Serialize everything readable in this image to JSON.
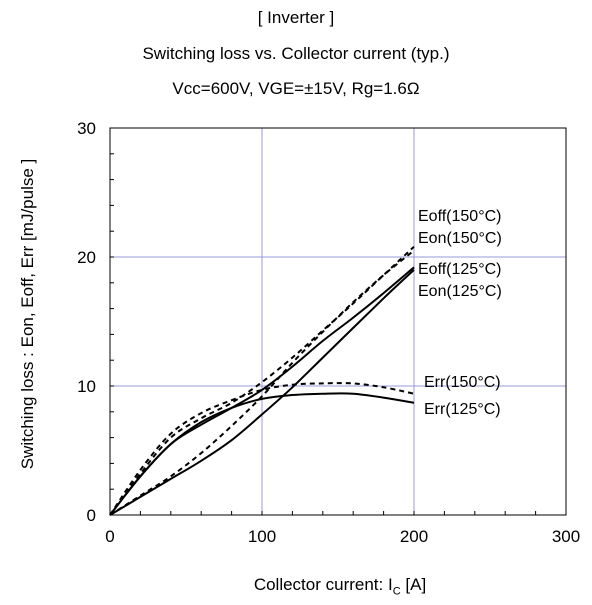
{
  "chart_data": {
    "type": "line",
    "title": "[ Inverter ]",
    "subtitle": "Switching loss  vs.  Collector current  (typ.)",
    "conditions": "Vcc=600V,   VGE=±15V,   Rg=1.6Ω",
    "xlabel_main": "Collector current: I",
    "xlabel_sub": "C",
    "xlabel_unit": " [A]",
    "ylabel": "Switching loss  : Eon, Eoff, Err  [mJ/pulse ]",
    "xlim": [
      0,
      300
    ],
    "ylim": [
      0,
      30
    ],
    "xticks": [
      0,
      100,
      200,
      300
    ],
    "yticks": [
      0,
      10,
      20,
      30
    ],
    "grid": true,
    "series": [
      {
        "name": "Eoff(150°C)",
        "style": "dashed",
        "x": [
          0,
          20,
          40,
          60,
          80,
          100,
          120,
          140,
          160,
          180,
          200
        ],
        "y": [
          0,
          3.2,
          6.0,
          7.5,
          8.7,
          10.3,
          12.2,
          14.3,
          16.4,
          18.6,
          20.8
        ]
      },
      {
        "name": "Eon(150°C)",
        "style": "dashed",
        "x": [
          0,
          20,
          40,
          60,
          80,
          100,
          120,
          140,
          160,
          180,
          200
        ],
        "y": [
          0,
          1.5,
          3.0,
          4.8,
          6.9,
          9.2,
          11.8,
          14.2,
          16.5,
          18.6,
          20.5
        ]
      },
      {
        "name": "Eoff(125°C)",
        "style": "solid",
        "x": [
          0,
          20,
          40,
          60,
          80,
          100,
          120,
          140,
          160,
          180,
          200
        ],
        "y": [
          0,
          3.0,
          5.5,
          7.0,
          8.3,
          9.7,
          11.5,
          13.5,
          15.3,
          17.2,
          19.2
        ]
      },
      {
        "name": "Eon(125°C)",
        "style": "solid",
        "x": [
          0,
          20,
          40,
          60,
          80,
          100,
          120,
          140,
          160,
          180,
          200
        ],
        "y": [
          0,
          1.4,
          2.8,
          4.2,
          5.8,
          7.8,
          9.9,
          12.2,
          14.5,
          16.8,
          19.0
        ]
      },
      {
        "name": "Err(150°C)",
        "style": "dashed",
        "x": [
          0,
          20,
          40,
          60,
          80,
          100,
          120,
          140,
          160,
          180,
          200
        ],
        "y": [
          0,
          3.5,
          6.3,
          7.9,
          8.9,
          9.7,
          10.1,
          10.2,
          10.2,
          9.9,
          9.4
        ]
      },
      {
        "name": "Err(125°C)",
        "style": "solid",
        "x": [
          0,
          20,
          40,
          60,
          80,
          100,
          120,
          140,
          160,
          180,
          200
        ],
        "y": [
          0,
          3.0,
          5.5,
          7.2,
          8.3,
          9.0,
          9.3,
          9.4,
          9.4,
          9.1,
          8.7
        ]
      }
    ],
    "labels": [
      "Eoff(150°C)",
      "Eon(150°C)",
      "Eoff(125°C)",
      "Eon(125°C)",
      "Err(150°C)",
      "Err(125°C)"
    ],
    "colors": {
      "axis": "#000000",
      "grid": "#9a9ad8",
      "line": "#000000"
    }
  }
}
